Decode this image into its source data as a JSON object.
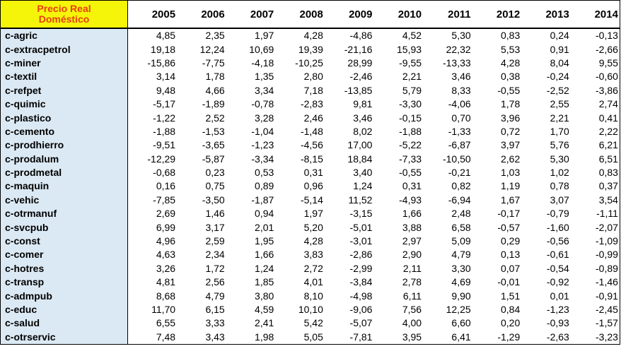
{
  "header": {
    "corner_line1": "Precio Real",
    "corner_line2": "Doméstico",
    "years": [
      "2005",
      "2006",
      "2007",
      "2008",
      "2009",
      "2010",
      "2011",
      "2012",
      "2013",
      "2014"
    ]
  },
  "rows": [
    {
      "name": "c-agric",
      "values": [
        "4,85",
        "2,35",
        "1,97",
        "4,28",
        "-4,86",
        "4,52",
        "5,30",
        "0,83",
        "0,24",
        "-0,13"
      ]
    },
    {
      "name": "c-extracpetrol",
      "values": [
        "19,18",
        "12,24",
        "10,69",
        "19,39",
        "-21,16",
        "15,93",
        "22,32",
        "5,53",
        "0,91",
        "-2,66"
      ]
    },
    {
      "name": "c-miner",
      "values": [
        "-15,86",
        "-7,75",
        "-4,18",
        "-10,25",
        "28,99",
        "-9,55",
        "-13,33",
        "4,28",
        "8,04",
        "9,55"
      ]
    },
    {
      "name": "c-textil",
      "values": [
        "3,14",
        "1,78",
        "1,35",
        "2,80",
        "-2,46",
        "2,21",
        "3,46",
        "0,38",
        "-0,24",
        "-0,60"
      ]
    },
    {
      "name": "c-refpet",
      "values": [
        "9,48",
        "4,66",
        "3,34",
        "7,18",
        "-13,85",
        "5,79",
        "8,33",
        "-0,55",
        "-2,52",
        "-3,86"
      ]
    },
    {
      "name": "c-quimic",
      "values": [
        "-5,17",
        "-1,89",
        "-0,78",
        "-2,83",
        "9,81",
        "-3,30",
        "-4,06",
        "1,78",
        "2,55",
        "2,74"
      ]
    },
    {
      "name": "c-plastico",
      "values": [
        "-1,22",
        "2,52",
        "3,28",
        "2,46",
        "3,46",
        "-0,15",
        "0,70",
        "3,96",
        "2,21",
        "0,41"
      ]
    },
    {
      "name": "c-cemento",
      "values": [
        "-1,88",
        "-1,53",
        "-1,04",
        "-1,48",
        "8,02",
        "-1,88",
        "-1,33",
        "0,72",
        "1,70",
        "2,22"
      ]
    },
    {
      "name": "c-prodhierro",
      "values": [
        "-9,51",
        "-3,65",
        "-1,23",
        "-4,56",
        "17,00",
        "-5,22",
        "-6,87",
        "3,97",
        "5,76",
        "6,21"
      ]
    },
    {
      "name": "c-prodalum",
      "values": [
        "-12,29",
        "-5,87",
        "-3,34",
        "-8,15",
        "18,84",
        "-7,33",
        "-10,50",
        "2,62",
        "5,30",
        "6,51"
      ]
    },
    {
      "name": "c-prodmetal",
      "values": [
        "-0,68",
        "0,23",
        "0,53",
        "0,31",
        "3,40",
        "-0,55",
        "-0,21",
        "1,03",
        "1,02",
        "0,83"
      ]
    },
    {
      "name": "c-maquin",
      "values": [
        "0,16",
        "0,75",
        "0,89",
        "0,96",
        "1,24",
        "0,31",
        "0,82",
        "1,19",
        "0,78",
        "0,37"
      ]
    },
    {
      "name": "c-vehic",
      "values": [
        "-7,85",
        "-3,50",
        "-1,87",
        "-5,14",
        "11,52",
        "-4,93",
        "-6,94",
        "1,67",
        "3,07",
        "3,54"
      ]
    },
    {
      "name": "c-otrmanuf",
      "values": [
        "2,69",
        "1,46",
        "0,94",
        "1,97",
        "-3,15",
        "1,66",
        "2,48",
        "-0,17",
        "-0,79",
        "-1,11"
      ]
    },
    {
      "name": "c-svcpub",
      "values": [
        "6,99",
        "3,17",
        "2,01",
        "5,20",
        "-5,01",
        "3,88",
        "6,58",
        "-0,57",
        "-1,60",
        "-2,07"
      ]
    },
    {
      "name": "c-const",
      "values": [
        "4,96",
        "2,59",
        "1,95",
        "4,28",
        "-3,01",
        "2,97",
        "5,09",
        "0,29",
        "-0,56",
        "-1,09"
      ]
    },
    {
      "name": "c-comer",
      "values": [
        "4,63",
        "2,34",
        "1,66",
        "3,83",
        "-2,86",
        "2,90",
        "4,79",
        "0,13",
        "-0,61",
        "-0,99"
      ]
    },
    {
      "name": "c-hotres",
      "values": [
        "3,26",
        "1,72",
        "1,24",
        "2,72",
        "-2,99",
        "2,11",
        "3,30",
        "0,07",
        "-0,54",
        "-0,89"
      ]
    },
    {
      "name": "c-transp",
      "values": [
        "4,81",
        "2,56",
        "1,85",
        "4,01",
        "-3,84",
        "2,78",
        "4,69",
        "-0,01",
        "-0,92",
        "-1,46"
      ]
    },
    {
      "name": "c-admpub",
      "values": [
        "8,68",
        "4,79",
        "3,80",
        "8,10",
        "-4,98",
        "6,11",
        "9,90",
        "1,51",
        "0,01",
        "-0,91"
      ]
    },
    {
      "name": "c-educ",
      "values": [
        "11,70",
        "6,15",
        "4,59",
        "10,10",
        "-9,06",
        "7,56",
        "12,25",
        "0,84",
        "-1,23",
        "-2,45"
      ]
    },
    {
      "name": "c-salud",
      "values": [
        "6,55",
        "3,33",
        "2,41",
        "5,42",
        "-5,07",
        "4,00",
        "6,60",
        "0,20",
        "-0,93",
        "-1,57"
      ]
    },
    {
      "name": "c-otrservic",
      "values": [
        "7,48",
        "3,43",
        "1,98",
        "5,05",
        "-7,81",
        "3,95",
        "6,41",
        "-1,29",
        "-2,63",
        "-3,23"
      ]
    }
  ]
}
